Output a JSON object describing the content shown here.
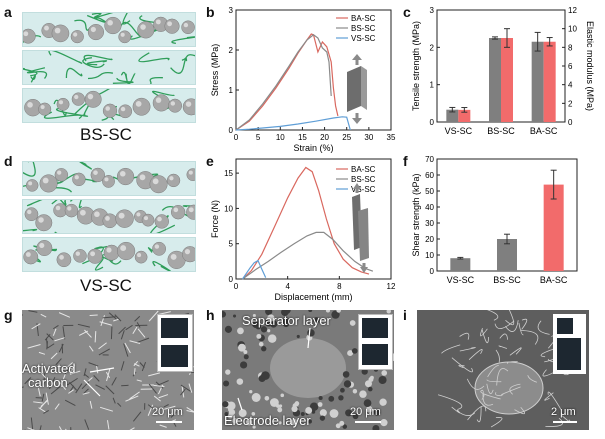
{
  "panels": {
    "a": "a",
    "b": "b",
    "c": "c",
    "d": "d",
    "e": "e",
    "f": "f",
    "g": "g",
    "h": "h",
    "i": "i"
  },
  "schematics": {
    "top_label": "BS-SC",
    "bottom_label": "VS-SC"
  },
  "colors": {
    "BA-SC": "#d9685f",
    "BS-SC": "#8a8a8a",
    "VS-SC": "#5f9ed6",
    "bar_grey": "#7f7f7f",
    "bar_red": "#f26b6b",
    "binder_green": "#2f9e5a",
    "sphere": "#a7a7a7",
    "schematic_bg": "#d7ecec"
  },
  "chart_data": [
    {
      "id": "b",
      "type": "line",
      "xlabel": "Strain (%)",
      "ylabel": "Stress (MPa)",
      "xlim": [
        0,
        35
      ],
      "ylim": [
        0,
        3
      ],
      "xticks": [
        0,
        5,
        10,
        15,
        20,
        25,
        30,
        35
      ],
      "yticks": [
        0,
        1,
        2,
        3
      ],
      "legend": "top-right",
      "series": [
        {
          "name": "BA-SC",
          "x": [
            0,
            3,
            6,
            9,
            12,
            14,
            16,
            17,
            17.5,
            18.5,
            19.5,
            20.5,
            21.5,
            22,
            22.5,
            23
          ],
          "y": [
            0,
            0.22,
            0.6,
            1.05,
            1.55,
            1.92,
            2.25,
            2.4,
            2.38,
            1.95,
            2.2,
            2.08,
            1.7,
            1.05,
            0.6,
            0.35
          ]
        },
        {
          "name": "BS-SC",
          "x": [
            0,
            3,
            6,
            9,
            12,
            14,
            16,
            17.5,
            18.5,
            19.5,
            20.5,
            21,
            21.5
          ],
          "y": [
            0,
            0.25,
            0.65,
            1.1,
            1.6,
            1.95,
            2.25,
            2.38,
            2.3,
            2.05,
            1.95,
            1.7,
            0.85
          ]
        },
        {
          "name": "VS-SC",
          "x": [
            0,
            3,
            6,
            10,
            14,
            18,
            22,
            24,
            25,
            25.8
          ],
          "y": [
            0,
            0.02,
            0.05,
            0.09,
            0.15,
            0.22,
            0.3,
            0.33,
            0.32,
            0.0
          ]
        }
      ]
    },
    {
      "id": "c",
      "type": "bar",
      "categories": [
        "VS-SC",
        "BS-SC",
        "BA-SC"
      ],
      "ylabel": "Tensile strength (MPa)",
      "y2label": "Elastic modulus (MPa)",
      "ylim": [
        0,
        3
      ],
      "y2lim": [
        0,
        12
      ],
      "yticks": [
        0,
        1,
        2,
        3
      ],
      "y2ticks": [
        0,
        2,
        4,
        6,
        8,
        10,
        12
      ],
      "series": [
        {
          "axis": "left",
          "values": [
            0.33,
            2.25,
            2.15
          ],
          "err": [
            0.06,
            0.03,
            0.25
          ]
        },
        {
          "axis": "right",
          "values": [
            1.3,
            9.0,
            8.6
          ],
          "err": [
            0.25,
            1.0,
            0.45
          ]
        }
      ]
    },
    {
      "id": "e",
      "type": "line",
      "xlabel": "Displacement (mm)",
      "ylabel": "Force (N)",
      "xlim": [
        0,
        12
      ],
      "ylim": [
        0,
        17
      ],
      "xticks": [
        0,
        4,
        8,
        12
      ],
      "yticks": [
        0,
        5,
        10,
        15
      ],
      "legend": "top-right",
      "series": [
        {
          "name": "BA-SC",
          "x": [
            0.5,
            1.2,
            2,
            3,
            4,
            4.8,
            5.4,
            5.9,
            6.4,
            7,
            7.6,
            8.3,
            9,
            9.7,
            10.3
          ],
          "y": [
            0,
            1.2,
            3.5,
            7.5,
            11.5,
            14.3,
            15.8,
            15.2,
            12.5,
            8.5,
            5.0,
            2.8,
            1.6,
            1.0,
            0.7
          ]
        },
        {
          "name": "BS-SC",
          "x": [
            0.5,
            1.5,
            2.5,
            3.5,
            4.5,
            5.5,
            6.2,
            6.8,
            7.5,
            8.3,
            9.2,
            10,
            10.6
          ],
          "y": [
            0,
            1.3,
            2.5,
            3.8,
            5.0,
            6.1,
            6.6,
            6.6,
            5.6,
            4.0,
            2.5,
            1.5,
            1.1
          ]
        },
        {
          "name": "VS-SC",
          "x": [
            0.5,
            0.8,
            1.1,
            1.4,
            1.7,
            2.0,
            2.3
          ],
          "y": [
            0,
            0.8,
            1.6,
            2.3,
            2.6,
            1.4,
            0.2
          ]
        }
      ]
    },
    {
      "id": "f",
      "type": "bar",
      "categories": [
        "VS-SC",
        "BS-SC",
        "BA-SC"
      ],
      "ylabel": "Shear strength (kPa)",
      "ylim": [
        0,
        70
      ],
      "yticks": [
        0,
        10,
        20,
        30,
        40,
        50,
        60,
        70
      ],
      "values": [
        8,
        20,
        54
      ],
      "err": [
        0.5,
        3,
        9
      ]
    }
  ],
  "sem": {
    "g": {
      "annotation_line1": "Activated",
      "annotation_line2": "carbon",
      "scale": "20 μm"
    },
    "h": {
      "annotation_top": "Separator layer",
      "annotation_bottom": "Electrode layer",
      "scale": "20 μm"
    },
    "i": {
      "scale": "2 μm"
    }
  }
}
